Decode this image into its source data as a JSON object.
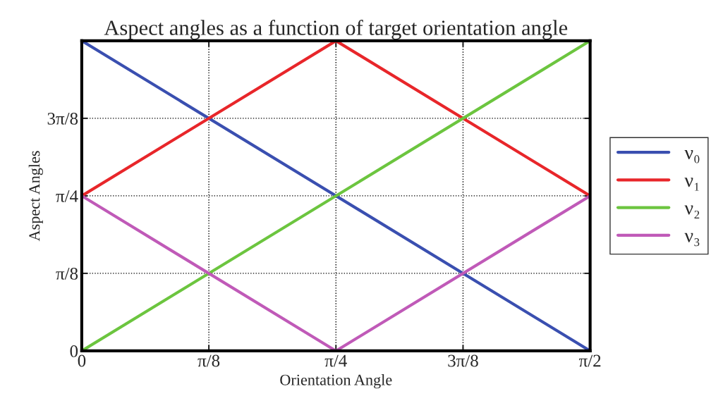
{
  "chart_data": {
    "type": "line",
    "title": "Aspect angles as a function of target orientation angle",
    "xlabel": "Orientation Angle",
    "ylabel": "Aspect Angles",
    "series": [
      {
        "name": "ν₀",
        "color": "#3a4fb0",
        "x": [
          0,
          1.5708
        ],
        "values": [
          1.5708,
          0
        ]
      },
      {
        "name": "ν₁",
        "color": "#e8262a",
        "x": [
          0,
          0.7854,
          1.5708
        ],
        "values": [
          0.7854,
          1.5708,
          0.7854
        ]
      },
      {
        "name": "ν₂",
        "color": "#6cc53f",
        "x": [
          0,
          1.5708
        ],
        "values": [
          0,
          1.5708
        ]
      },
      {
        "name": "ν₃",
        "color": "#c05ab8",
        "x": [
          0,
          0.7854,
          1.5708
        ],
        "values": [
          0.7854,
          0,
          0.7854
        ]
      }
    ],
    "xlim": [
      0,
      1.5708
    ],
    "ylim": [
      0,
      1.5708
    ],
    "xticks": [
      0,
      {
        "value": 0.3927,
        "label": "π/8"
      },
      {
        "value": 0.7854,
        "label": "π/4"
      },
      {
        "value": 1.1781,
        "label": "3π/8"
      },
      {
        "value": 1.5708,
        "label": "π/2"
      }
    ],
    "yticks": [
      0,
      {
        "value": 0.3927,
        "label": "π/8"
      },
      {
        "value": 0.7854,
        "label": "π/4"
      },
      {
        "value": 1.1781,
        "label": "3π/8"
      }
    ],
    "grid": true,
    "line_style": "solid",
    "marker": "none",
    "legend": "right"
  }
}
